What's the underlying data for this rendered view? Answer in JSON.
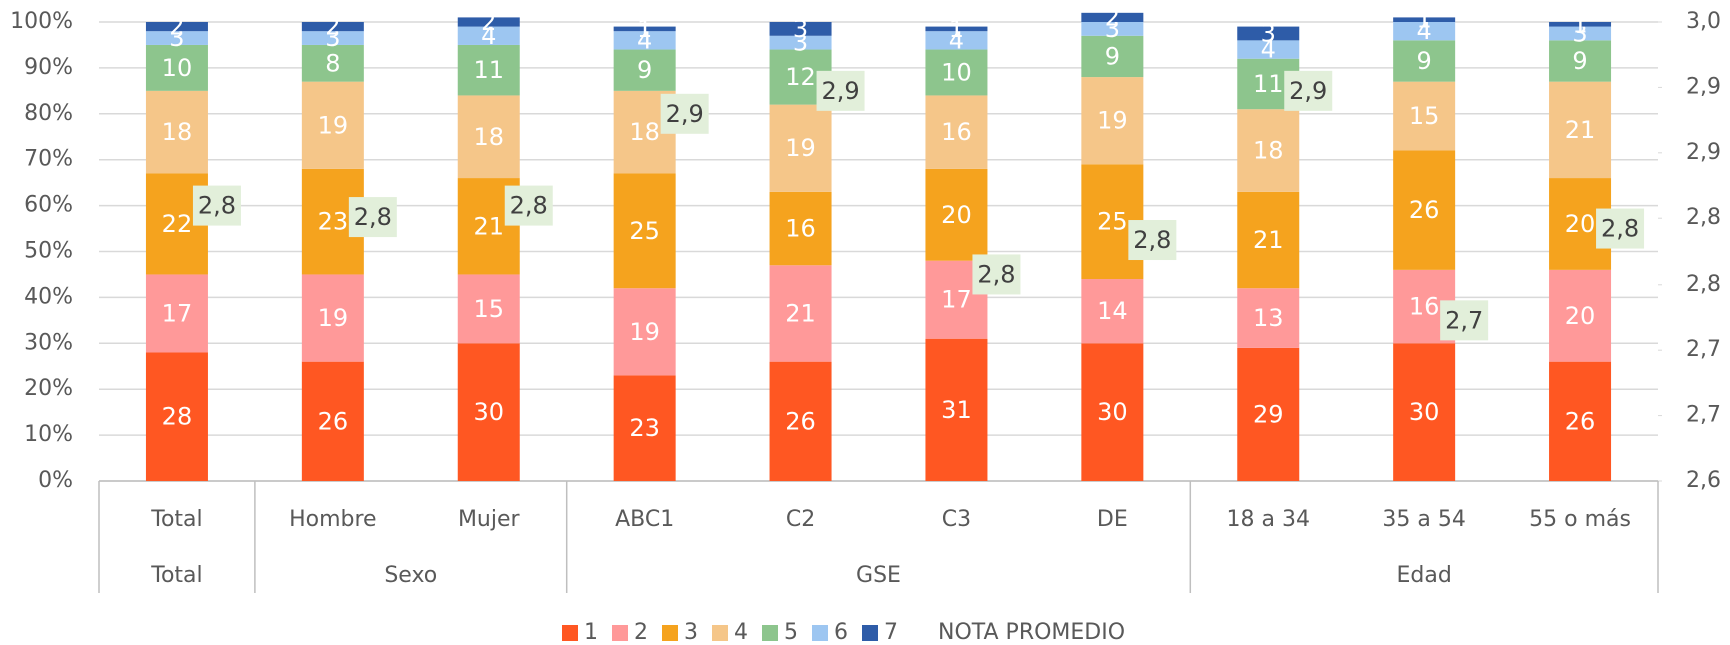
{
  "chart_data": {
    "type": "bar",
    "stacked": true,
    "groups": [
      {
        "name": "Total",
        "categories": [
          "Total"
        ]
      },
      {
        "name": "Sexo",
        "categories": [
          "Hombre",
          "Mujer"
        ]
      },
      {
        "name": "GSE",
        "categories": [
          "ABC1",
          "C2",
          "C3",
          "DE"
        ]
      },
      {
        "name": "Edad",
        "categories": [
          "18 a 34",
          "35 a 54",
          "55 o más"
        ]
      }
    ],
    "series": [
      {
        "name": "1",
        "color": "#FF5722",
        "values": [
          28,
          26,
          30,
          23,
          26,
          31,
          30,
          29,
          30,
          26
        ]
      },
      {
        "name": "2",
        "color": "#FF9999",
        "values": [
          17,
          19,
          15,
          19,
          21,
          17,
          14,
          13,
          16,
          20
        ]
      },
      {
        "name": "3",
        "color": "#F5A31E",
        "values": [
          22,
          23,
          21,
          25,
          16,
          20,
          25,
          21,
          26,
          20
        ]
      },
      {
        "name": "4",
        "color": "#F5C689",
        "values": [
          18,
          19,
          18,
          18,
          19,
          16,
          19,
          18,
          15,
          21
        ]
      },
      {
        "name": "5",
        "color": "#8DC58D",
        "values": [
          10,
          8,
          11,
          9,
          12,
          10,
          9,
          11,
          9,
          9
        ]
      },
      {
        "name": "6",
        "color": "#9DC6F1",
        "values": [
          3,
          3,
          4,
          4,
          3,
          4,
          3,
          4,
          4,
          3
        ]
      },
      {
        "name": "7",
        "color": "#2E5CA8",
        "values": [
          2,
          2,
          2,
          1,
          3,
          1,
          2,
          3,
          1,
          1
        ]
      },
      {
        "name": "NOTA PROMEDIO",
        "type": "line",
        "axis": "y2",
        "values": [
          2.84,
          2.83,
          2.84,
          2.92,
          2.94,
          2.78,
          2.81,
          2.94,
          2.74,
          2.82
        ],
        "value_labels": [
          "2,8",
          "2,8",
          "2,8",
          "2,9",
          "2,9",
          "2,8",
          "2,8",
          "2,9",
          "2,7",
          "2,8"
        ]
      }
    ],
    "ylim": [
      0,
      100
    ],
    "yticks": [
      {
        "value": 0,
        "label": "0%"
      },
      {
        "value": 10,
        "label": "10%"
      },
      {
        "value": 20,
        "label": "20%"
      },
      {
        "value": 30,
        "label": "30%"
      },
      {
        "value": 40,
        "label": "40%"
      },
      {
        "value": 50,
        "label": "50%"
      },
      {
        "value": 60,
        "label": "60%"
      },
      {
        "value": 70,
        "label": "70%"
      },
      {
        "value": 80,
        "label": "80%"
      },
      {
        "value": 90,
        "label": "90%"
      },
      {
        "value": 100,
        "label": "100%"
      }
    ],
    "y2lim": [
      2.6,
      3.0
    ],
    "y2ticks": [
      {
        "value": 2.6,
        "label": "2,6"
      },
      {
        "value": 2.657,
        "label": "2,7"
      },
      {
        "value": 2.714,
        "label": "2,7"
      },
      {
        "value": 2.771,
        "label": "2,8"
      },
      {
        "value": 2.829,
        "label": "2,8"
      },
      {
        "value": 2.886,
        "label": "2,9"
      },
      {
        "value": 2.943,
        "label": "2,9"
      },
      {
        "value": 3.0,
        "label": "3,0"
      }
    ],
    "grid": true
  }
}
